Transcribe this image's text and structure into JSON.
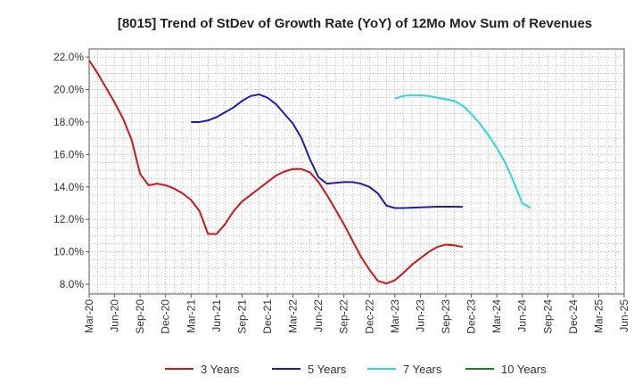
{
  "chart_data": {
    "type": "line",
    "title": "[8015]  Trend of StDev of Growth Rate (YoY) of 12Mo Mov Sum of Revenues",
    "xlabel": "",
    "ylabel": "",
    "x_tick_labels": [
      "Mar-20",
      "Jun-20",
      "Sep-20",
      "Dec-20",
      "Mar-21",
      "Jun-21",
      "Sep-21",
      "Dec-21",
      "Mar-22",
      "Jun-22",
      "Sep-22",
      "Dec-22",
      "Mar-23",
      "Jun-23",
      "Sep-23",
      "Dec-23",
      "Mar-24",
      "Jun-24",
      "Sep-24",
      "Dec-24",
      "Mar-25",
      "Jun-25"
    ],
    "y_ticks": [
      8,
      10,
      12,
      14,
      16,
      18,
      20,
      22
    ],
    "y_tick_labels": [
      "8.0%",
      "10.0%",
      "12.0%",
      "14.0%",
      "16.0%",
      "18.0%",
      "20.0%",
      "22.0%"
    ],
    "ylim": [
      7.4,
      22.5
    ],
    "x_range": [
      0,
      63
    ],
    "grid": true,
    "legend_position": "bottom",
    "series": [
      {
        "name": "3 Years",
        "color": "#dd1111",
        "start_index": 0,
        "values": [
          21.8,
          21.0,
          20.1,
          19.2,
          18.2,
          16.9,
          14.8,
          14.1,
          14.2,
          14.1,
          13.9,
          13.6,
          13.2,
          12.5,
          11.1,
          11.1,
          11.7,
          12.5,
          13.1,
          13.5,
          13.9,
          14.3,
          14.7,
          14.95,
          15.1,
          15.1,
          14.9,
          14.3,
          13.5,
          12.6,
          11.7,
          10.7,
          9.7,
          8.9,
          8.2,
          8.05,
          8.25,
          8.7,
          9.2,
          9.6,
          10.0,
          10.3,
          10.45,
          10.4,
          10.3
        ]
      },
      {
        "name": "5 Years",
        "color": "#1a1acc",
        "start_index": 12,
        "values": [
          18.0,
          18.0,
          18.1,
          18.3,
          18.6,
          18.9,
          19.3,
          19.6,
          19.7,
          19.5,
          19.1,
          18.5,
          17.9,
          17.0,
          15.7,
          14.6,
          14.2,
          14.25,
          14.3,
          14.3,
          14.2,
          14.0,
          13.6,
          12.85,
          12.7,
          12.7,
          12.72,
          12.74,
          12.76,
          12.78,
          12.78,
          12.78,
          12.77
        ]
      },
      {
        "name": "7 Years",
        "color": "#22dddd",
        "start_index": 36,
        "values": [
          19.45,
          19.6,
          19.65,
          19.65,
          19.6,
          19.5,
          19.4,
          19.3,
          19.0,
          18.5,
          17.9,
          17.2,
          16.4,
          15.5,
          14.3,
          13.0,
          12.7
        ]
      },
      {
        "name": "10 Years",
        "color": "#118811",
        "start_index": 0,
        "values": []
      }
    ]
  }
}
